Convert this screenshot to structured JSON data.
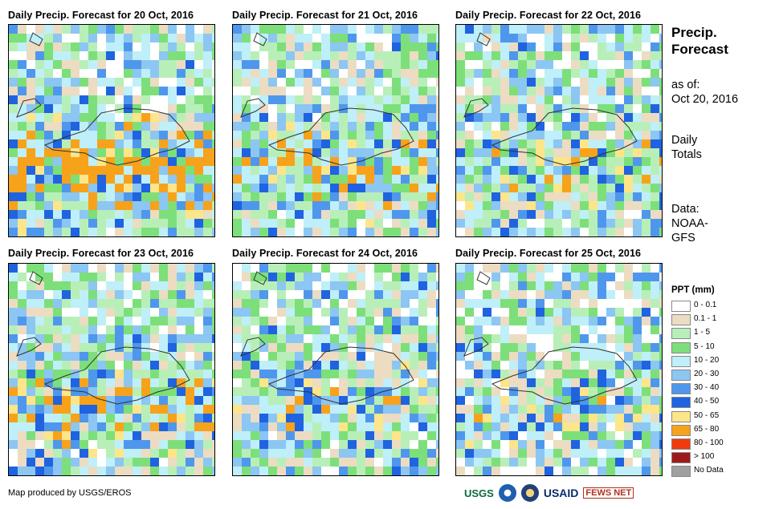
{
  "panels": [
    {
      "title": "Daily Precip. Forecast for 20 Oct, 2016",
      "seed": 11,
      "bias": 1.2
    },
    {
      "title": "Daily Precip. Forecast for 21 Oct, 2016",
      "seed": 23,
      "bias": 0.8
    },
    {
      "title": "Daily Precip. Forecast for 22 Oct, 2016",
      "seed": 37,
      "bias": 0.5
    },
    {
      "title": "Daily Precip. Forecast for 23 Oct, 2016",
      "seed": 41,
      "bias": 0.7
    },
    {
      "title": "Daily Precip. Forecast for 24 Oct, 2016",
      "seed": 53,
      "bias": 0.4
    },
    {
      "title": "Daily Precip. Forecast for 25 Oct, 2016",
      "seed": 67,
      "bias": 0.35
    }
  ],
  "side": {
    "title_line1": "Precip.",
    "title_line2": "Forecast",
    "asof_label": "as of:",
    "asof_date": "Oct 20, 2016",
    "daily_line1": "Daily",
    "daily_line2": "Totals",
    "data_line1": "Data:",
    "data_line2": "NOAA-",
    "data_line3": "GFS"
  },
  "legend": {
    "title": "PPT (mm)",
    "items": [
      {
        "label": "0 - 0.1",
        "color": "#ffffff"
      },
      {
        "label": "0.1 - 1",
        "color": "#ecdcc2"
      },
      {
        "label": "1 - 5",
        "color": "#b8efb8"
      },
      {
        "label": "5 - 10",
        "color": "#7ddf7a"
      },
      {
        "label": "10 - 20",
        "color": "#bfeff8"
      },
      {
        "label": "20 - 30",
        "color": "#8cc6f2"
      },
      {
        "label": "30 - 40",
        "color": "#4f97ec"
      },
      {
        "label": "40 - 50",
        "color": "#1f63e0"
      },
      {
        "label": "50 - 65",
        "color": "#fde58a"
      },
      {
        "label": "65 - 80",
        "color": "#f7a21b"
      },
      {
        "label": "80 - 100",
        "color": "#f23a0f"
      },
      {
        "label": "> 100",
        "color": "#9e1a1a"
      },
      {
        "label": "No Data",
        "color": "#a0a0a0"
      }
    ]
  },
  "footer": {
    "credit": "Map produced by USGS/EROS",
    "logos": [
      "USGS",
      "NOAA",
      "DOS",
      "USAID",
      "FEWS NET"
    ]
  }
}
